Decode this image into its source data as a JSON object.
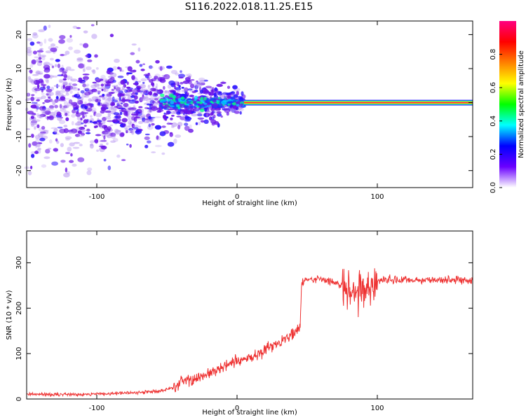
{
  "title": "S116.2022.018.11.25.E15",
  "colors": {
    "snr_line": "#ee3333",
    "spectrum_blob": "#7a2cf0",
    "spectrum_ridge": "#ff2244"
  },
  "chart_data": [
    {
      "type": "heatmap",
      "xlabel": "Height of straight line (km)",
      "ylabel": "Frequency (Hz)",
      "xlim": [
        -150,
        168
      ],
      "ylim": [
        -25,
        24
      ],
      "xticks": [
        -100,
        0,
        100
      ],
      "xtick_labels": [
        "-100",
        "0",
        "100"
      ],
      "yticks": [
        -20,
        -10,
        0,
        10,
        20
      ],
      "ytick_labels": [
        "-20",
        "-10",
        "0",
        "10",
        "20"
      ],
      "colorbar": {
        "label": "Normalized spectral amplitude",
        "range": [
          0,
          1
        ],
        "ticks": [
          0.0,
          0.2,
          0.4,
          0.6,
          0.8
        ],
        "tick_labels": [
          "0.0",
          "0.2",
          "0.4",
          "0.6",
          "0.8"
        ],
        "colormap": [
          "#ffffff",
          "#6a00ff",
          "#0000ff",
          "#00ffff",
          "#00ff00",
          "#ffff00",
          "#ff8000",
          "#ff0000",
          "#ff0080"
        ]
      },
      "ridge": {
        "frequency": 0,
        "x_range": [
          5,
          168
        ],
        "amplitude": 0.9
      },
      "grid": false
    },
    {
      "type": "line",
      "xlabel": "Height of straight line (km)",
      "ylabel": "SNR (10 * v/v)",
      "xlim": [
        -150,
        168
      ],
      "ylim": [
        0,
        370
      ],
      "xticks": [
        -100,
        0,
        100
      ],
      "xtick_labels": [
        "-100",
        "0",
        "100"
      ],
      "yticks": [
        0,
        100,
        200,
        300
      ],
      "ytick_labels": [
        "0",
        "100",
        "200",
        "300"
      ],
      "series": [
        {
          "x": [
            -150,
            -120,
            -90,
            -70,
            -55,
            -45,
            -40,
            -30,
            -20,
            -10,
            0,
            10,
            20,
            30,
            40,
            45,
            46,
            50,
            60,
            70,
            80,
            90,
            95,
            100,
            110,
            120,
            140,
            168
          ],
          "values": [
            10,
            10,
            12,
            14,
            18,
            25,
            38,
            45,
            55,
            70,
            82,
            90,
            110,
            125,
            145,
            155,
            255,
            262,
            265,
            255,
            245,
            240,
            238,
            262,
            262,
            262,
            262,
            262
          ]
        }
      ],
      "grid": false
    }
  ]
}
